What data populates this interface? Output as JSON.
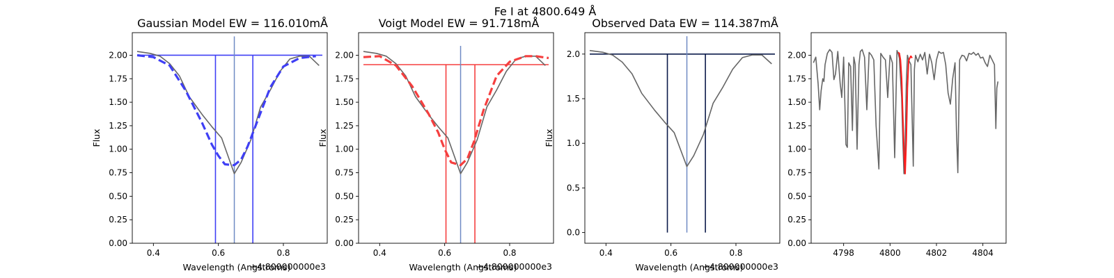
{
  "figure": {
    "suptitle": "Fe I at 4800.649 Å"
  },
  "colors": {
    "spectrum": "#666666",
    "center_line": "#6f8ac4",
    "gaussian": "#3f3ff5",
    "voigt": "#f53f3f",
    "observed": "#0b1a4a",
    "highlight": "#ff1a1a"
  },
  "chart_data": [
    {
      "type": "line",
      "title": "Gaussian Model EW = 116.010mÅ",
      "xlabel": "Wavelength (Angstroms)",
      "ylabel": "Flux",
      "x_offset_label": "+4.800000000e3",
      "xlim": [
        0.335,
        0.935
      ],
      "ylim": [
        0.0,
        2.24
      ],
      "xticks": [
        0.4,
        0.6,
        0.8
      ],
      "xtick_labels": [
        "0.4",
        "0.6",
        "0.8"
      ],
      "yticks": [
        0.0,
        0.25,
        0.5,
        0.75,
        1.0,
        1.25,
        1.5,
        1.75,
        2.0
      ],
      "ytick_labels": [
        "0.00",
        "0.25",
        "0.50",
        "0.75",
        "1.00",
        "1.25",
        "1.50",
        "1.75",
        "2.00"
      ],
      "series": [
        {
          "role": "observed",
          "style": "solid",
          "color": "#666666",
          "x": [
            0.35,
            0.39,
            0.42,
            0.45,
            0.48,
            0.51,
            0.55,
            0.58,
            0.61,
            0.649,
            0.67,
            0.7,
            0.73,
            0.76,
            0.79,
            0.82,
            0.85,
            0.88,
            0.91
          ],
          "y": [
            2.04,
            2.02,
            1.99,
            1.91,
            1.78,
            1.56,
            1.37,
            1.24,
            1.12,
            0.74,
            0.86,
            1.1,
            1.45,
            1.63,
            1.83,
            1.96,
            1.99,
            1.99,
            1.89
          ]
        },
        {
          "role": "model",
          "style": "dashed",
          "color": "#3f3ff5",
          "x": [
            0.35,
            0.4,
            0.45,
            0.5,
            0.55,
            0.58,
            0.6,
            0.62,
            0.649,
            0.67,
            0.69,
            0.72,
            0.76,
            0.8,
            0.85,
            0.9
          ],
          "y": [
            2.0,
            1.98,
            1.89,
            1.62,
            1.28,
            1.05,
            0.93,
            0.84,
            0.83,
            0.89,
            1.03,
            1.3,
            1.66,
            1.88,
            1.97,
            1.99
          ]
        }
      ],
      "continuum": {
        "y": 2.0,
        "x0": 0.35,
        "x1": 0.92,
        "color": "#3f3ff5"
      },
      "center": {
        "x": 0.649,
        "y0": 0.0,
        "y1": 2.2,
        "color": "#6f8ac4"
      },
      "bounds": {
        "x": [
          0.591,
          0.706
        ],
        "y0": 0.0,
        "y1": 2.0,
        "color": "#3f3ff5"
      }
    },
    {
      "type": "line",
      "title": "Voigt Model EW = 91.718mÅ",
      "xlabel": "Wavelength (Angstroms)",
      "ylabel": "Flux",
      "x_offset_label": "+4.800000000e3",
      "xlim": [
        0.335,
        0.935
      ],
      "ylim": [
        0.0,
        2.24
      ],
      "xticks": [
        0.4,
        0.6,
        0.8
      ],
      "xtick_labels": [
        "0.4",
        "0.6",
        "0.8"
      ],
      "yticks": [
        0.0,
        0.25,
        0.5,
        0.75,
        1.0,
        1.25,
        1.5,
        1.75,
        2.0
      ],
      "ytick_labels": [
        "0.00",
        "0.25",
        "0.50",
        "0.75",
        "1.00",
        "1.25",
        "1.50",
        "1.75",
        "2.00"
      ],
      "series": [
        {
          "role": "observed",
          "style": "solid",
          "color": "#666666",
          "x": [
            0.35,
            0.39,
            0.42,
            0.45,
            0.48,
            0.51,
            0.55,
            0.58,
            0.61,
            0.649,
            0.67,
            0.7,
            0.73,
            0.76,
            0.79,
            0.82,
            0.85,
            0.88,
            0.91
          ],
          "y": [
            2.04,
            2.02,
            1.99,
            1.91,
            1.78,
            1.56,
            1.37,
            1.24,
            1.12,
            0.74,
            0.86,
            1.1,
            1.45,
            1.63,
            1.83,
            1.96,
            1.99,
            1.99,
            1.89
          ]
        },
        {
          "role": "model",
          "style": "dashed",
          "color": "#f53f3f",
          "x": [
            0.35,
            0.4,
            0.45,
            0.5,
            0.55,
            0.58,
            0.6,
            0.62,
            0.649,
            0.67,
            0.69,
            0.72,
            0.76,
            0.8,
            0.85,
            0.88,
            0.92
          ],
          "y": [
            1.98,
            1.99,
            1.89,
            1.67,
            1.38,
            1.18,
            1.0,
            0.86,
            0.83,
            0.9,
            1.08,
            1.42,
            1.78,
            1.93,
            1.99,
            1.99,
            1.97
          ]
        }
      ],
      "continuum": {
        "y": 1.9,
        "x0": 0.35,
        "x1": 0.92,
        "color": "#f53f3f"
      },
      "center": {
        "x": 0.649,
        "y0": 0.0,
        "y1": 2.1,
        "color": "#6f8ac4"
      },
      "bounds": {
        "x": [
          0.604,
          0.693
        ],
        "y0": 0.0,
        "y1": 1.9,
        "color": "#f53f3f"
      }
    },
    {
      "type": "line",
      "title": "Observed Data EW = 114.387mÅ",
      "xlabel": "Wavelength (Angstroms)",
      "ylabel": "Flux",
      "x_offset_label": "+4.800000000e3",
      "xlim": [
        0.335,
        0.935
      ],
      "ylim": [
        -0.12,
        2.24
      ],
      "xticks": [
        0.4,
        0.6,
        0.8
      ],
      "xtick_labels": [
        "0.4",
        "0.6",
        "0.8"
      ],
      "yticks": [
        0.0,
        0.5,
        1.0,
        1.5,
        2.0
      ],
      "ytick_labels": [
        "0.0",
        "0.5",
        "1.0",
        "1.5",
        "2.0"
      ],
      "series": [
        {
          "role": "observed",
          "style": "solid",
          "color": "#666666",
          "x": [
            0.35,
            0.39,
            0.42,
            0.45,
            0.48,
            0.51,
            0.55,
            0.58,
            0.61,
            0.649,
            0.67,
            0.7,
            0.73,
            0.76,
            0.79,
            0.82,
            0.85,
            0.88,
            0.91
          ],
          "y": [
            2.04,
            2.02,
            1.99,
            1.91,
            1.78,
            1.56,
            1.37,
            1.24,
            1.12,
            0.74,
            0.86,
            1.1,
            1.45,
            1.63,
            1.83,
            1.96,
            1.99,
            1.99,
            1.89
          ]
        }
      ],
      "continuum": {
        "y": 2.0,
        "x0": 0.35,
        "x1": 0.92,
        "color": "#0b1a4a"
      },
      "center": {
        "x": 0.649,
        "y0": 0.0,
        "y1": 2.2,
        "color": "#6f8ac4"
      },
      "bounds": {
        "x": [
          0.589,
          0.706
        ],
        "y0": 0.0,
        "y1": 2.0,
        "color": "#0b1a4a"
      }
    },
    {
      "type": "line",
      "title": "",
      "xlabel": "",
      "ylabel": "",
      "xlim": [
        4796.6,
        4805.0
      ],
      "ylim": [
        0.0,
        2.24
      ],
      "xticks": [
        4798,
        4800,
        4802,
        4804
      ],
      "xtick_labels": [
        "4798",
        "4800",
        "4802",
        "4804"
      ],
      "yticks": [
        0.0,
        0.25,
        0.5,
        0.75,
        1.0,
        1.25,
        1.5,
        1.75,
        2.0
      ],
      "ytick_labels": [
        "0.00",
        "0.25",
        "0.50",
        "0.75",
        "1.00",
        "1.25",
        "1.50",
        "1.75",
        "2.00"
      ],
      "series": [
        {
          "role": "spectrum",
          "style": "solid",
          "color": "#666666",
          "x": [
            4796.7,
            4796.8,
            4796.9,
            4796.97,
            4797.03,
            4797.1,
            4797.15,
            4797.2,
            4797.3,
            4797.4,
            4797.5,
            4797.58,
            4797.65,
            4797.75,
            4797.85,
            4797.92,
            4798.0,
            4798.1,
            4798.16,
            4798.22,
            4798.3,
            4798.38,
            4798.44,
            4798.5,
            4798.58,
            4798.66,
            4798.72,
            4798.8,
            4798.9,
            4799.0,
            4799.1,
            4799.2,
            4799.3,
            4799.4,
            4799.52,
            4799.6,
            4799.7,
            4799.8,
            4799.9,
            4800.0,
            4800.1,
            4800.2,
            4800.3,
            4800.35,
            4800.4,
            4800.5,
            4800.55,
            4800.6,
            4800.65,
            4800.7,
            4800.75,
            4800.8,
            4800.9,
            4801.0,
            4801.05,
            4801.1,
            4801.2,
            4801.3,
            4801.4,
            4801.5,
            4801.6,
            4801.7,
            4801.8,
            4801.9,
            4802.0,
            4802.1,
            4802.2,
            4802.3,
            4802.4,
            4802.5,
            4802.6,
            4802.7,
            4802.8,
            4802.86,
            4802.92,
            4803.0,
            4803.1,
            4803.2,
            4803.3,
            4803.4,
            4803.5,
            4803.6,
            4803.7,
            4803.8,
            4803.9,
            4804.0,
            4804.1,
            4804.2,
            4804.3,
            4804.4,
            4804.5,
            4804.56,
            4804.6,
            4804.65
          ],
          "y": [
            1.92,
            1.98,
            1.7,
            1.42,
            1.62,
            1.75,
            1.72,
            1.9,
            2.02,
            2.06,
            2.03,
            1.74,
            1.8,
            2.04,
            1.7,
            1.55,
            1.98,
            1.05,
            1.02,
            1.92,
            1.88,
            1.2,
            1.98,
            1.9,
            1.0,
            1.9,
            2.04,
            2.06,
            1.98,
            1.42,
            2.03,
            2.0,
            1.95,
            1.25,
            0.79,
            2.02,
            1.98,
            1.95,
            1.55,
            2.0,
            1.92,
            0.91,
            2.05,
            2.02,
            1.97,
            1.55,
            1.1,
            0.74,
            1.05,
            1.7,
            2.0,
            1.95,
            1.9,
            0.82,
            1.85,
            2.0,
            1.93,
            2.01,
            1.95,
            2.03,
            1.8,
            2.01,
            1.92,
            1.74,
            1.95,
            2.04,
            2.02,
            2.03,
            1.9,
            1.6,
            1.48,
            1.75,
            1.92,
            1.2,
            0.75,
            1.95,
            2.0,
            1.99,
            1.94,
            2.02,
            2.01,
            2.03,
            2.0,
            2.02,
            1.97,
            1.98,
            1.92,
            1.88,
            2.0,
            1.95,
            1.9,
            1.22,
            1.65,
            1.72
          ]
        },
        {
          "role": "highlight",
          "style": "solid",
          "color": "#ff1a1a",
          "x": [
            4800.35,
            4800.4,
            4800.45,
            4800.5,
            4800.55,
            4800.6,
            4800.65,
            4800.7,
            4800.75,
            4800.8,
            4800.85,
            4800.9,
            4800.95
          ],
          "y": [
            2.03,
            2.02,
            1.95,
            1.75,
            1.35,
            1.0,
            0.74,
            1.1,
            1.65,
            1.94,
            1.97,
            1.99,
            1.97
          ]
        }
      ]
    }
  ]
}
